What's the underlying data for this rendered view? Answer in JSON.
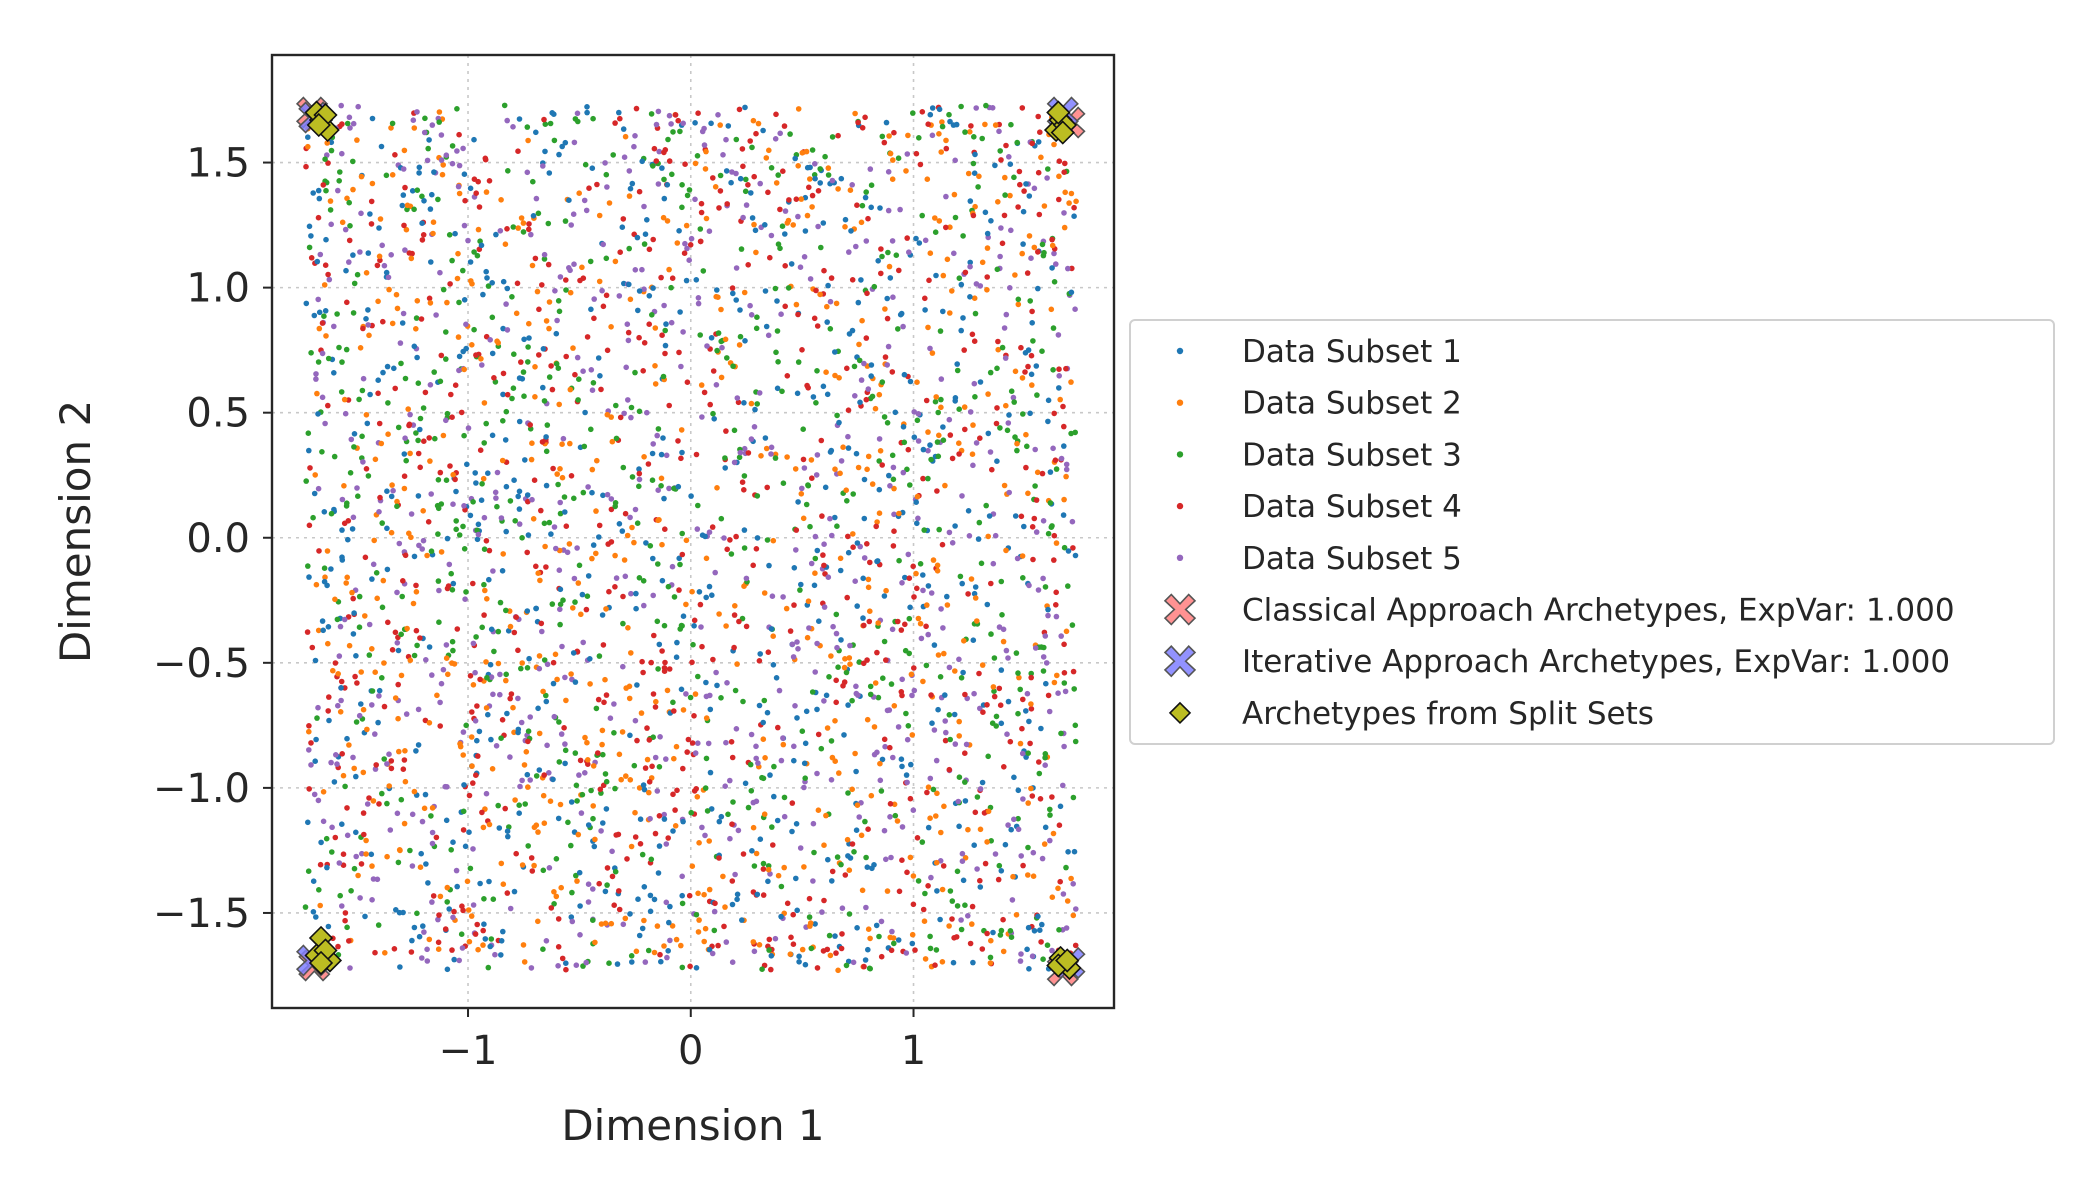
{
  "chart_data": {
    "type": "scatter",
    "title": "",
    "xlabel": "Dimension 1",
    "ylabel": "Dimension 2",
    "xlim": [
      -1.88,
      1.9
    ],
    "ylim": [
      -1.88,
      1.93
    ],
    "xticks": [
      -1,
      0,
      1
    ],
    "xtick_labels": [
      "−1",
      "0",
      "1"
    ],
    "yticks": [
      -1.5,
      -1.0,
      -0.5,
      0.0,
      0.5,
      1.0,
      1.5
    ],
    "ytick_labels": [
      "−1.5",
      "−1.0",
      "−0.5",
      "0.0",
      "0.5",
      "1.0",
      "1.5"
    ],
    "grid": true,
    "legend_placement": "right, outside plot",
    "data_range": {
      "x": [
        -1.73,
        1.73
      ],
      "y": [
        -1.73,
        1.73
      ]
    },
    "points_per_subset": 700,
    "series": [
      {
        "name": "Data Subset 1",
        "kind": "points",
        "color": "#1f77b4"
      },
      {
        "name": "Data Subset 2",
        "kind": "points",
        "color": "#ff7f0e"
      },
      {
        "name": "Data Subset 3",
        "kind": "points",
        "color": "#2ca02c"
      },
      {
        "name": "Data Subset 4",
        "kind": "points",
        "color": "#d62728"
      },
      {
        "name": "Data Subset 5",
        "kind": "points",
        "color": "#9467bd"
      },
      {
        "name": "Classical Approach Archetypes, ExpVar: 1.000",
        "kind": "archetype-x",
        "color": "#ff7f7f",
        "points": [
          [
            -1.7,
            1.7
          ],
          [
            1.7,
            1.66
          ],
          [
            -1.69,
            -1.71
          ],
          [
            1.67,
            -1.73
          ]
        ]
      },
      {
        "name": "Iterative Approach Archetypes, ExpVar: 1.000",
        "kind": "archetype-x",
        "color": "#7f7fff",
        "points": [
          [
            -1.69,
            1.68
          ],
          [
            1.67,
            1.7
          ],
          [
            -1.7,
            -1.69
          ],
          [
            1.7,
            -1.7
          ]
        ]
      },
      {
        "name": "Archetypes from Split Sets",
        "kind": "archetype-diamond",
        "color": "#bcbd22",
        "points": [
          [
            -1.66,
            1.67
          ],
          [
            -1.63,
            1.63
          ],
          [
            -1.68,
            1.7
          ],
          [
            -1.64,
            1.69
          ],
          [
            -1.67,
            1.65
          ],
          [
            1.64,
            1.63
          ],
          [
            1.66,
            1.67
          ],
          [
            1.68,
            1.65
          ],
          [
            1.65,
            1.7
          ],
          [
            1.67,
            1.62
          ],
          [
            -1.66,
            -1.6
          ],
          [
            -1.62,
            -1.69
          ],
          [
            -1.68,
            -1.67
          ],
          [
            -1.64,
            -1.65
          ],
          [
            -1.66,
            -1.7
          ],
          [
            1.66,
            -1.68
          ],
          [
            1.68,
            -1.7
          ],
          [
            1.7,
            -1.72
          ],
          [
            1.65,
            -1.71
          ],
          [
            1.69,
            -1.69
          ]
        ]
      }
    ]
  }
}
